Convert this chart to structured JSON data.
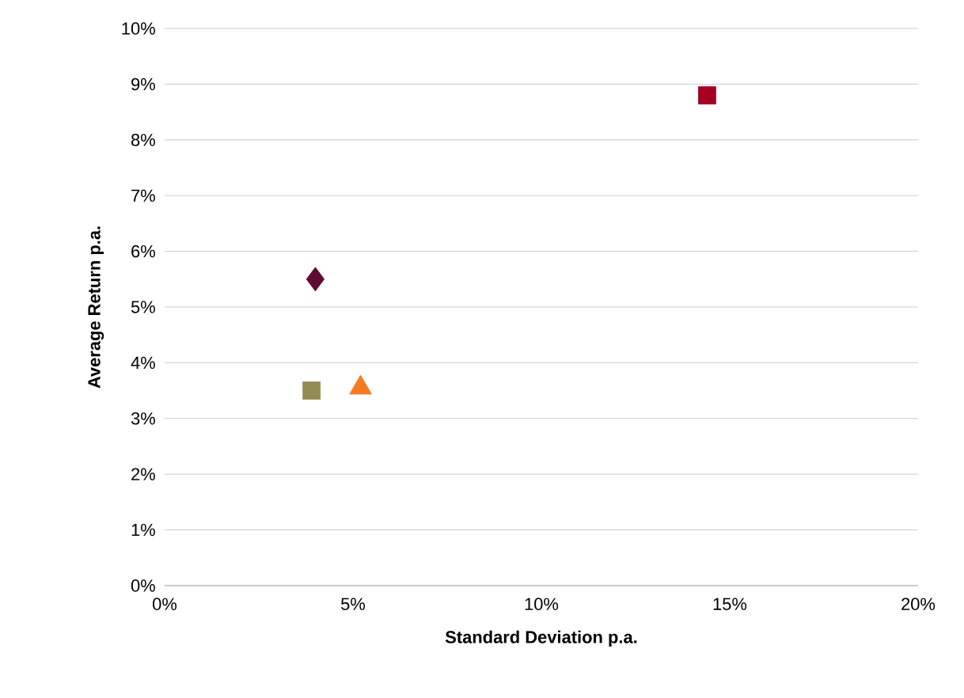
{
  "chart_data": {
    "type": "scatter",
    "xlabel": "Standard Deviation p.a.",
    "ylabel": "Average Return p.a.",
    "series": [
      {
        "x": [
          14.4
        ],
        "values": [
          8.8
        ],
        "color": "#a50021",
        "marker": "square"
      },
      {
        "x": [
          4.0
        ],
        "values": [
          5.5
        ],
        "color": "#5f0a32",
        "marker": "diamond"
      },
      {
        "x": [
          3.9
        ],
        "values": [
          3.5
        ],
        "color": "#948a54",
        "marker": "square"
      },
      {
        "x": [
          5.2
        ],
        "values": [
          3.55
        ],
        "color": "#f47b20",
        "marker": "triangle"
      }
    ],
    "xlim": [
      0,
      20
    ],
    "xticks": [
      {
        "value": 0,
        "label": "0%"
      },
      {
        "value": 5,
        "label": "5%"
      },
      {
        "value": 10,
        "label": "10%"
      },
      {
        "value": 15,
        "label": "15%"
      },
      {
        "value": 20,
        "label": "20%"
      }
    ],
    "ylim": [
      0,
      10
    ],
    "yticks": [
      {
        "value": 0,
        "label": "0%"
      },
      {
        "value": 1,
        "label": "1%"
      },
      {
        "value": 2,
        "label": "2%"
      },
      {
        "value": 3,
        "label": "3%"
      },
      {
        "value": 4,
        "label": "4%"
      },
      {
        "value": 5,
        "label": "5%"
      },
      {
        "value": 6,
        "label": "6%"
      },
      {
        "value": 7,
        "label": "7%"
      },
      {
        "value": 8,
        "label": "8%"
      },
      {
        "value": 9,
        "label": "9%"
      },
      {
        "value": 10,
        "label": "10%"
      }
    ],
    "grid": "y"
  }
}
